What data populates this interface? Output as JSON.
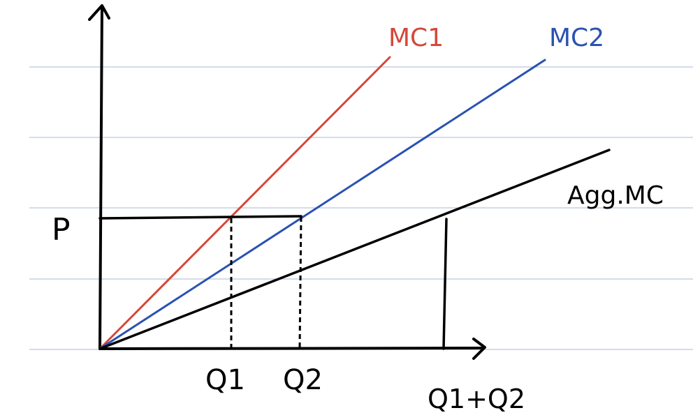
{
  "diagram": {
    "labels": {
      "price": "P",
      "mc1": "MC1",
      "mc2": "MC2",
      "agg": "Agg.MC",
      "q1": "Q1",
      "q2": "Q2",
      "qsum": "Q1+Q2"
    },
    "colors": {
      "paper": "#ffffff",
      "ruled_line": "#b9c6dc",
      "ink": "#000000",
      "mc1": "#d4483a",
      "mc2": "#2a52b2"
    }
  }
}
